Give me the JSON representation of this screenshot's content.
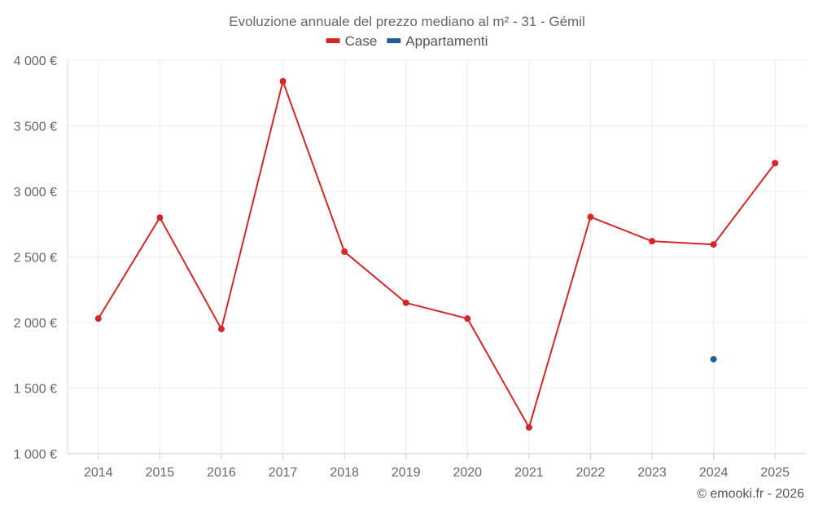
{
  "chart_data": {
    "type": "line",
    "title": "Evoluzione annuale del prezzo mediano al m² - 31 - Gémil",
    "categories": [
      "2014",
      "2015",
      "2016",
      "2017",
      "2018",
      "2019",
      "2020",
      "2021",
      "2022",
      "2023",
      "2024",
      "2025"
    ],
    "y_ticks": [
      1000,
      1500,
      2000,
      2500,
      3000,
      3500,
      4000
    ],
    "y_tick_labels": [
      "1 000 €",
      "1 500 €",
      "2 000 €",
      "2 500 €",
      "3 000 €",
      "3 500 €",
      "4 000 €"
    ],
    "ylim": [
      1000,
      4000
    ],
    "grid": true,
    "legend_position": "top-center",
    "series": [
      {
        "name": "Case",
        "color": "#d62728",
        "values": [
          2030,
          2800,
          1950,
          3840,
          2540,
          2150,
          2030,
          1200,
          2805,
          2620,
          2595,
          3215
        ]
      },
      {
        "name": "Appartamenti",
        "color": "#1f5f99",
        "values": [
          null,
          null,
          null,
          null,
          null,
          null,
          null,
          null,
          null,
          null,
          1720,
          null
        ]
      }
    ],
    "credit": "© emooki.fr - 2026"
  }
}
